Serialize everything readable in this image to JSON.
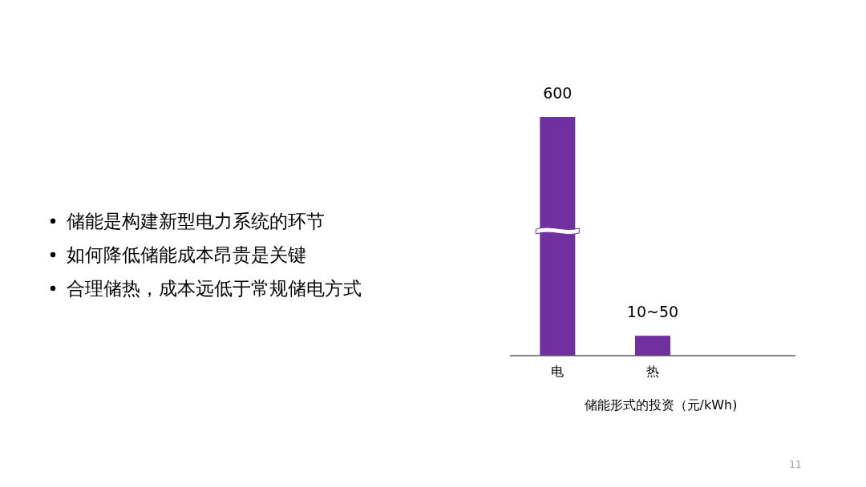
{
  "chart_data": {
    "type": "bar",
    "categories": [
      "电",
      "热"
    ],
    "values": [
      600,
      50
    ],
    "ylim": [
      0,
      600
    ],
    "color": "#7030a0",
    "value_labels": [
      "600",
      "10~50"
    ],
    "xlabel": "储能形式的投资（元/kWh)",
    "annotations": [
      "储能是构建新型电力系统的环节",
      "如何降低储能成本昂贵是关键",
      "合理储热，成本远低于常规储电方式",
      "11"
    ]
  }
}
